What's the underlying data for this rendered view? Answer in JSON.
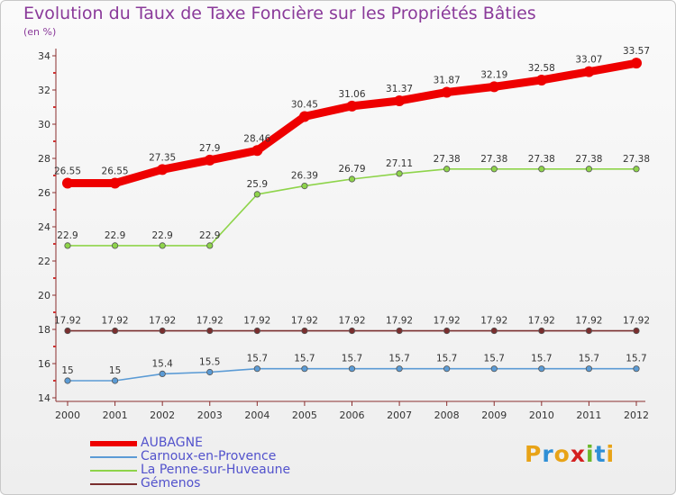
{
  "title": "Evolution du Taux de Taxe Foncière sur les Propriétés Bâties",
  "unit": "(en %)",
  "logo": {
    "letters": [
      "P",
      "r",
      "o",
      "x",
      "i",
      "t",
      "i"
    ],
    "colors": [
      "#e8a317",
      "#2f8fd6",
      "#e8a317",
      "#d42020",
      "#6bb82a",
      "#2f8fd6",
      "#e8a317"
    ]
  },
  "chart_data": {
    "type": "line",
    "title": "Evolution du Taux de Taxe Foncière sur les Propriétés Bâties",
    "ylabel": "(en %)",
    "xlabel": "",
    "ylim": [
      14,
      34
    ],
    "yticks": [
      14,
      16,
      18,
      20,
      22,
      24,
      26,
      28,
      30,
      32,
      34
    ],
    "grid": false,
    "legend_position": "bottom-left",
    "x": [
      "2000",
      "2001",
      "2002",
      "2003",
      "2004",
      "2005",
      "2006",
      "2007",
      "2008",
      "2009",
      "2010",
      "2011",
      "2012"
    ],
    "series": [
      {
        "name": "AUBAGNE",
        "color": "#ee0000",
        "style": "thick",
        "values": [
          26.55,
          26.55,
          27.35,
          27.9,
          28.46,
          30.45,
          31.06,
          31.37,
          31.87,
          32.19,
          32.58,
          33.07,
          33.57
        ]
      },
      {
        "name": "Carnoux-en-Provence",
        "color": "#5b9bd5",
        "style": "thin",
        "values": [
          15,
          15,
          15.4,
          15.5,
          15.7,
          15.7,
          15.7,
          15.7,
          15.7,
          15.7,
          15.7,
          15.7,
          15.7
        ]
      },
      {
        "name": "La Penne-sur-Huveaune",
        "color": "#8ed44a",
        "style": "thin",
        "values": [
          22.9,
          22.9,
          22.9,
          22.9,
          25.9,
          26.39,
          26.79,
          27.11,
          27.38,
          27.38,
          27.38,
          27.38,
          27.38
        ]
      },
      {
        "name": "Gémenos",
        "color": "#7a2e2e",
        "style": "thin",
        "values": [
          17.92,
          17.92,
          17.92,
          17.92,
          17.92,
          17.92,
          17.92,
          17.92,
          17.92,
          17.92,
          17.92,
          17.92,
          17.92
        ]
      }
    ]
  }
}
